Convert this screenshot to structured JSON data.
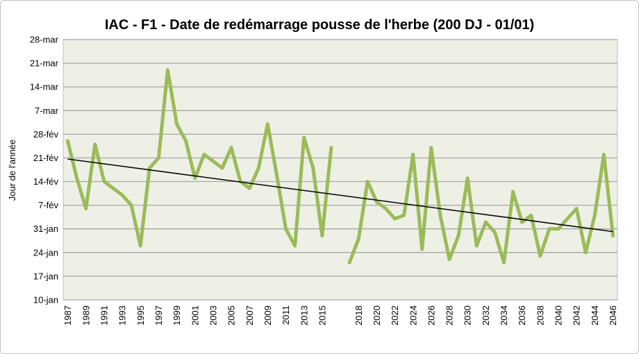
{
  "chart_data": {
    "type": "line",
    "title": "IAC - F1 - Date de redémarrage pousse de l'herbe (200 DJ - 01/01)",
    "ylabel": "Jour de l'année",
    "categories": [
      1987,
      1988,
      1989,
      1990,
      1991,
      1992,
      1993,
      1994,
      1995,
      1996,
      1997,
      1998,
      1999,
      2000,
      2001,
      2002,
      2003,
      2004,
      2005,
      2006,
      2007,
      2008,
      2009,
      2010,
      2011,
      2012,
      2013,
      2014,
      2015,
      2016,
      null,
      2017,
      2018,
      2019,
      2020,
      2021,
      2022,
      2023,
      2024,
      2025,
      2026,
      2027,
      2028,
      2029,
      2030,
      2031,
      2032,
      2033,
      2034,
      2035,
      2036,
      2037,
      2038,
      2039,
      2040,
      2041,
      2042,
      2043,
      2044,
      2045,
      2046
    ],
    "y_ticks": [
      "10-jan",
      "17-jan",
      "24-jan",
      "31-jan",
      "7-fév",
      "14-fév",
      "21-fév",
      "28-fév",
      "7-mar",
      "14-mar",
      "21-mar",
      "28-mar"
    ],
    "ylim": [
      "10-jan",
      "28-mar"
    ],
    "grid": true,
    "series": [
      {
        "color": "#9bbb59",
        "values": [
          "26-fév",
          "15-fév",
          "6-fév",
          "25-fév",
          "14-fév",
          "12-fév",
          "10-fév",
          "7-fév",
          "26-jan",
          "18-fév",
          "21-fév",
          "19-mar",
          "3-mar",
          "26-fév",
          "15-fév",
          "22-fév",
          "20-fév",
          "18-fév",
          "24-fév",
          "14-fév",
          "12-fév",
          "18-fév",
          "3-mar",
          "16-fév",
          "31-jan",
          "26-jan",
          "27-fév",
          "18-fév",
          "29-jan",
          "24-fév",
          null,
          "21-jan",
          "28-jan",
          "14-fév",
          "8-fév",
          "6-fév",
          "3-fév",
          "4-fév",
          "22-fév",
          "25-jan",
          "24-fév",
          "4-fév",
          "22-jan",
          "29-jan",
          "15-fév",
          "26-jan",
          "2-fév",
          "30-jan",
          "21-jan",
          "11-fév",
          "2-fév",
          "4-fév",
          "23-jan",
          "31-jan",
          "31-jan",
          "3-fév",
          "6-fév",
          "24-jan",
          "4-fév",
          "22-fév",
          "29-jan"
        ]
      }
    ],
    "trendline": {
      "type": "linear",
      "color": "#000000"
    },
    "colors": {
      "plot_background": "#eef0e6",
      "gridline": "#a6a6a6",
      "border": "#bfbfbf"
    }
  }
}
